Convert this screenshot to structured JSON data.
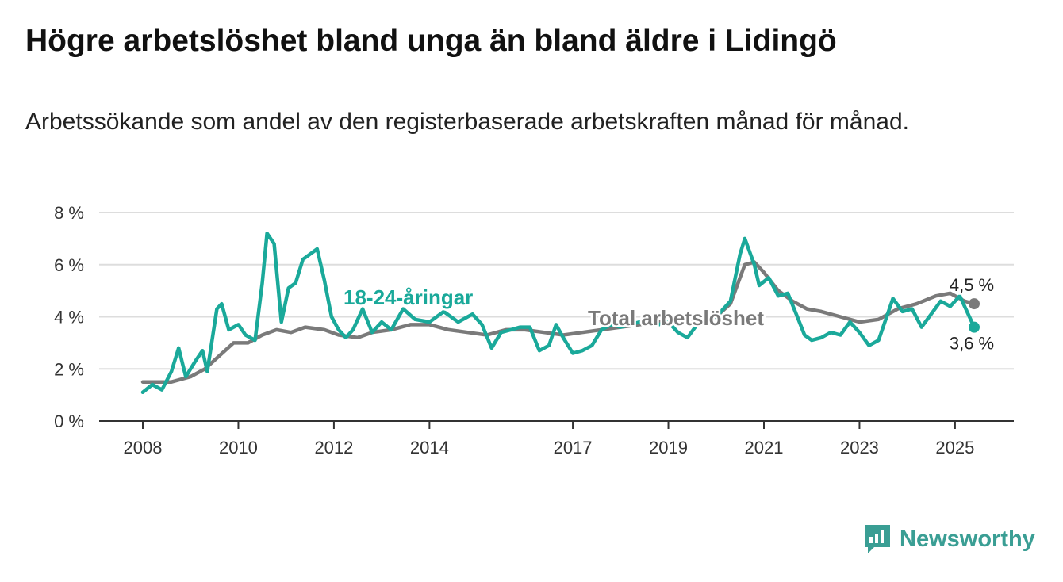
{
  "title": "Högre arbetslöshet bland unga än bland äldre i Lidingö",
  "subtitle": "Arbetssökande som andel av den registerbaserade arbetskraften månad för månad.",
  "brand": {
    "name": "Newsworthy",
    "icon": "newsworthy-logo-icon"
  },
  "colors": {
    "young": "#1aa99a",
    "total": "#7a7a7a",
    "grid": "#dddddd",
    "axis": "#333333"
  },
  "chart_data": {
    "type": "line",
    "title": "Högre arbetslöshet bland unga än bland äldre i Lidingö",
    "subtitle": "Arbetssökande som andel av den registerbaserade arbetskraften månad för månad.",
    "x_ticks": [
      2008,
      2010,
      2012,
      2014,
      2017,
      2019,
      2021,
      2023,
      2025
    ],
    "y_ticks": [
      0,
      2,
      4,
      6,
      8
    ],
    "y_tick_labels": [
      "0 %",
      "2 %",
      "4 %",
      "6 %",
      "8 %"
    ],
    "xlim": [
      2008,
      2025.4
    ],
    "ylim": [
      0,
      8
    ],
    "grid": true,
    "series": [
      {
        "name": "Total arbetslöshet",
        "color": "#7a7a7a",
        "end_label": "4,5 %",
        "points": [
          [
            2008.0,
            1.5
          ],
          [
            2008.3,
            1.5
          ],
          [
            2008.6,
            1.5
          ],
          [
            2009.0,
            1.7
          ],
          [
            2009.3,
            2.0
          ],
          [
            2009.6,
            2.5
          ],
          [
            2009.9,
            3.0
          ],
          [
            2010.2,
            3.0
          ],
          [
            2010.5,
            3.3
          ],
          [
            2010.8,
            3.5
          ],
          [
            2011.1,
            3.4
          ],
          [
            2011.4,
            3.6
          ],
          [
            2011.8,
            3.5
          ],
          [
            2012.1,
            3.3
          ],
          [
            2012.5,
            3.2
          ],
          [
            2012.8,
            3.4
          ],
          [
            2013.2,
            3.5
          ],
          [
            2013.6,
            3.7
          ],
          [
            2014.0,
            3.7
          ],
          [
            2014.4,
            3.5
          ],
          [
            2014.8,
            3.4
          ],
          [
            2015.2,
            3.3
          ],
          [
            2015.6,
            3.5
          ],
          [
            2016.0,
            3.5
          ],
          [
            2016.4,
            3.4
          ],
          [
            2016.8,
            3.3
          ],
          [
            2017.2,
            3.4
          ],
          [
            2017.6,
            3.5
          ],
          [
            2018.0,
            3.6
          ],
          [
            2018.4,
            3.7
          ],
          [
            2018.8,
            3.8
          ],
          [
            2019.2,
            3.8
          ],
          [
            2019.6,
            3.8
          ],
          [
            2020.0,
            4.0
          ],
          [
            2020.3,
            4.5
          ],
          [
            2020.6,
            6.0
          ],
          [
            2020.8,
            6.1
          ],
          [
            2021.0,
            5.7
          ],
          [
            2021.3,
            5.0
          ],
          [
            2021.6,
            4.6
          ],
          [
            2021.9,
            4.3
          ],
          [
            2022.2,
            4.2
          ],
          [
            2022.6,
            4.0
          ],
          [
            2023.0,
            3.8
          ],
          [
            2023.4,
            3.9
          ],
          [
            2023.8,
            4.3
          ],
          [
            2024.2,
            4.5
          ],
          [
            2024.6,
            4.8
          ],
          [
            2024.9,
            4.9
          ],
          [
            2025.2,
            4.6
          ],
          [
            2025.4,
            4.5
          ]
        ]
      },
      {
        "name": "18-24-åringar",
        "color": "#1aa99a",
        "end_label": "3,6 %",
        "points": [
          [
            2008.0,
            1.1
          ],
          [
            2008.2,
            1.4
          ],
          [
            2008.4,
            1.2
          ],
          [
            2008.6,
            1.9
          ],
          [
            2008.75,
            2.8
          ],
          [
            2008.9,
            1.7
          ],
          [
            2009.1,
            2.3
          ],
          [
            2009.25,
            2.7
          ],
          [
            2009.35,
            1.9
          ],
          [
            2009.55,
            4.3
          ],
          [
            2009.65,
            4.5
          ],
          [
            2009.8,
            3.5
          ],
          [
            2010.0,
            3.7
          ],
          [
            2010.15,
            3.3
          ],
          [
            2010.35,
            3.1
          ],
          [
            2010.5,
            5.3
          ],
          [
            2010.6,
            7.2
          ],
          [
            2010.75,
            6.8
          ],
          [
            2010.9,
            3.8
          ],
          [
            2011.05,
            5.1
          ],
          [
            2011.2,
            5.3
          ],
          [
            2011.35,
            6.2
          ],
          [
            2011.5,
            6.4
          ],
          [
            2011.65,
            6.6
          ],
          [
            2011.8,
            5.4
          ],
          [
            2011.95,
            4.0
          ],
          [
            2012.1,
            3.5
          ],
          [
            2012.25,
            3.2
          ],
          [
            2012.4,
            3.5
          ],
          [
            2012.6,
            4.3
          ],
          [
            2012.8,
            3.4
          ],
          [
            2013.0,
            3.8
          ],
          [
            2013.2,
            3.5
          ],
          [
            2013.45,
            4.3
          ],
          [
            2013.7,
            3.9
          ],
          [
            2014.0,
            3.8
          ],
          [
            2014.3,
            4.2
          ],
          [
            2014.6,
            3.8
          ],
          [
            2014.9,
            4.1
          ],
          [
            2015.1,
            3.7
          ],
          [
            2015.3,
            2.8
          ],
          [
            2015.5,
            3.4
          ],
          [
            2015.7,
            3.5
          ],
          [
            2015.9,
            3.6
          ],
          [
            2016.1,
            3.6
          ],
          [
            2016.3,
            2.7
          ],
          [
            2016.5,
            2.9
          ],
          [
            2016.65,
            3.7
          ],
          [
            2016.8,
            3.2
          ],
          [
            2017.0,
            2.6
          ],
          [
            2017.2,
            2.7
          ],
          [
            2017.4,
            2.9
          ],
          [
            2017.6,
            3.5
          ],
          [
            2017.8,
            3.7
          ],
          [
            2018.0,
            3.6
          ],
          [
            2018.2,
            3.7
          ],
          [
            2018.4,
            3.8
          ],
          [
            2018.6,
            3.9
          ],
          [
            2018.8,
            3.7
          ],
          [
            2019.0,
            3.8
          ],
          [
            2019.2,
            3.4
          ],
          [
            2019.4,
            3.2
          ],
          [
            2019.6,
            3.7
          ],
          [
            2019.8,
            4.0
          ],
          [
            2020.0,
            4.0
          ],
          [
            2020.3,
            4.6
          ],
          [
            2020.5,
            6.4
          ],
          [
            2020.6,
            7.0
          ],
          [
            2020.8,
            6.0
          ],
          [
            2020.9,
            5.2
          ],
          [
            2021.1,
            5.5
          ],
          [
            2021.3,
            4.8
          ],
          [
            2021.5,
            4.9
          ],
          [
            2021.7,
            4.0
          ],
          [
            2021.85,
            3.3
          ],
          [
            2022.0,
            3.1
          ],
          [
            2022.2,
            3.2
          ],
          [
            2022.4,
            3.4
          ],
          [
            2022.6,
            3.3
          ],
          [
            2022.8,
            3.8
          ],
          [
            2023.0,
            3.4
          ],
          [
            2023.2,
            2.9
          ],
          [
            2023.4,
            3.1
          ],
          [
            2023.55,
            3.9
          ],
          [
            2023.7,
            4.7
          ],
          [
            2023.9,
            4.2
          ],
          [
            2024.1,
            4.3
          ],
          [
            2024.3,
            3.6
          ],
          [
            2024.5,
            4.1
          ],
          [
            2024.7,
            4.6
          ],
          [
            2024.9,
            4.4
          ],
          [
            2025.1,
            4.8
          ],
          [
            2025.25,
            4.2
          ],
          [
            2025.4,
            3.6
          ]
        ]
      }
    ]
  }
}
